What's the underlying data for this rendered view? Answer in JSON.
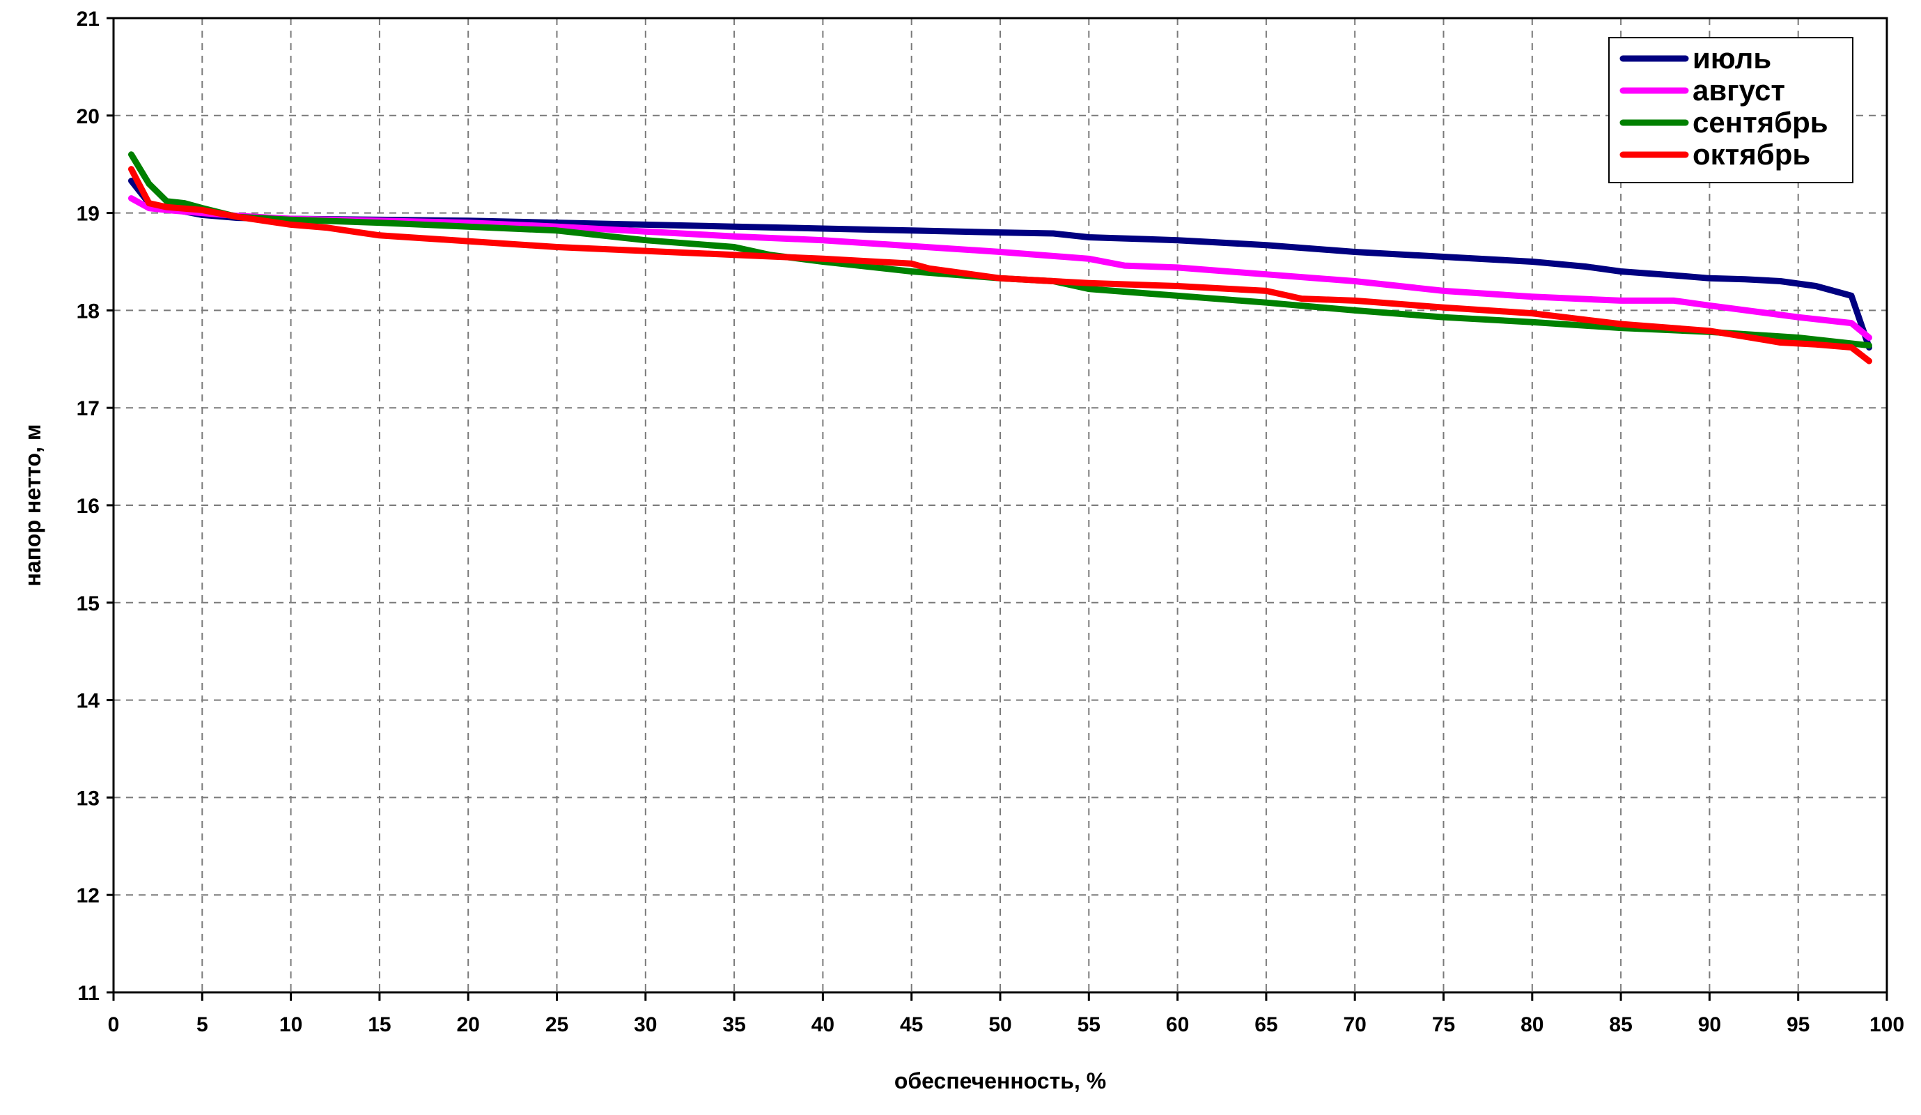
{
  "chart_data": {
    "type": "line",
    "title": "",
    "xlabel": "обеспеченность, %",
    "ylabel": "напор нетто, м",
    "xlim": [
      0,
      100
    ],
    "ylim": [
      11,
      21
    ],
    "xticks": [
      0,
      5,
      10,
      15,
      20,
      25,
      30,
      35,
      40,
      45,
      50,
      55,
      60,
      65,
      70,
      75,
      80,
      85,
      90,
      95,
      100
    ],
    "yticks": [
      11,
      12,
      13,
      14,
      15,
      16,
      17,
      18,
      19,
      20,
      21
    ],
    "grid": true,
    "legend_position": "top-right",
    "series": [
      {
        "name": "июль",
        "color": "#000080",
        "x": [
          1,
          2,
          3,
          5,
          7,
          10,
          15,
          20,
          25,
          30,
          35,
          40,
          45,
          50,
          53,
          55,
          60,
          65,
          70,
          75,
          80,
          83,
          85,
          88,
          90,
          92,
          94,
          96,
          98,
          99
        ],
        "y": [
          19.33,
          19.1,
          19.05,
          18.98,
          18.95,
          18.94,
          18.93,
          18.92,
          18.9,
          18.88,
          18.86,
          18.84,
          18.82,
          18.8,
          18.79,
          18.75,
          18.72,
          18.67,
          18.6,
          18.55,
          18.5,
          18.45,
          18.4,
          18.36,
          18.33,
          18.32,
          18.3,
          18.25,
          18.15,
          17.62
        ]
      },
      {
        "name": "август",
        "color": "#FF00FF",
        "x": [
          1,
          2,
          3,
          5,
          7,
          10,
          15,
          20,
          25,
          30,
          35,
          40,
          45,
          50,
          55,
          57,
          60,
          65,
          70,
          75,
          80,
          85,
          88,
          90,
          95,
          98,
          99
        ],
        "y": [
          19.15,
          19.05,
          19.03,
          19.0,
          18.97,
          18.94,
          18.92,
          18.9,
          18.86,
          18.81,
          18.76,
          18.72,
          18.66,
          18.6,
          18.53,
          18.46,
          18.44,
          18.37,
          18.3,
          18.2,
          18.14,
          18.1,
          18.1,
          18.05,
          17.93,
          17.87,
          17.72
        ]
      },
      {
        "name": "сентябрь",
        "color": "#008000",
        "x": [
          1,
          2,
          3,
          4,
          5,
          7,
          10,
          15,
          20,
          25,
          28,
          30,
          35,
          37,
          40,
          45,
          50,
          53,
          55,
          60,
          65,
          70,
          75,
          80,
          85,
          90,
          95,
          99
        ],
        "y": [
          19.6,
          19.3,
          19.12,
          19.1,
          19.05,
          18.96,
          18.93,
          18.9,
          18.86,
          18.82,
          18.76,
          18.72,
          18.65,
          18.57,
          18.5,
          18.4,
          18.33,
          18.3,
          18.22,
          18.15,
          18.08,
          18.0,
          17.93,
          17.88,
          17.82,
          17.78,
          17.72,
          17.64
        ]
      },
      {
        "name": "октябрь",
        "color": "#FF0000",
        "x": [
          1,
          2,
          3,
          5,
          7,
          10,
          12,
          15,
          20,
          25,
          30,
          35,
          40,
          45,
          46,
          50,
          55,
          60,
          63,
          65,
          67,
          70,
          75,
          80,
          85,
          90,
          92,
          94,
          96,
          98,
          99
        ],
        "y": [
          19.45,
          19.1,
          19.06,
          19.03,
          18.96,
          18.88,
          18.85,
          18.77,
          18.71,
          18.65,
          18.61,
          18.57,
          18.53,
          18.48,
          18.43,
          18.33,
          18.28,
          18.25,
          18.22,
          18.2,
          18.12,
          18.1,
          18.03,
          17.97,
          17.86,
          17.79,
          17.73,
          17.67,
          17.65,
          17.62,
          17.48
        ]
      }
    ]
  }
}
